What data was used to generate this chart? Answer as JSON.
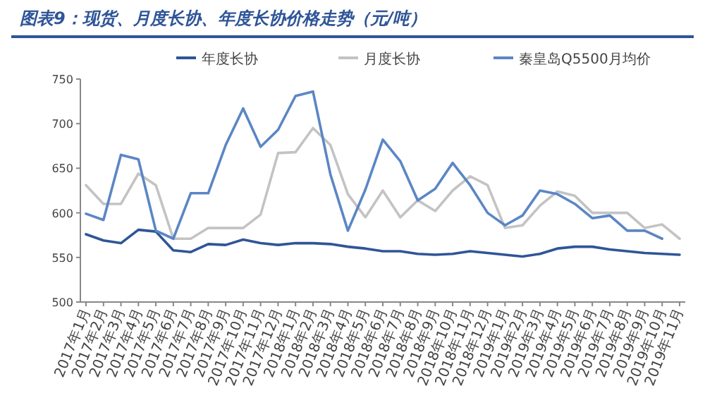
{
  "chart_data": {
    "type": "line",
    "title": "图表9：现货、月度长协、年度长协价格走势（元/吨）",
    "categories": [
      "2017年1月",
      "2017年2月",
      "2017年3月",
      "2017年4月",
      "2017年5月",
      "2017年6月",
      "2017年7月",
      "2017年8月",
      "2017年9月",
      "2017年10月",
      "2017年11月",
      "2017年12月",
      "2018年1月",
      "2018年2月",
      "2018年3月",
      "2018年4月",
      "2018年5月",
      "2018年6月",
      "2018年7月",
      "2018年8月",
      "2018年9月",
      "2018年10月",
      "2018年11月",
      "2018年12月",
      "2019年1月",
      "2019年2月",
      "2019年3月",
      "2019年4月",
      "2019年5月",
      "2019年6月",
      "2019年7月",
      "2019年8月",
      "2019年9月",
      "2019年10月",
      "2019年11月"
    ],
    "series": [
      {
        "name": "年度长协",
        "color": "#2f5597",
        "values": [
          576,
          569,
          566,
          581,
          579,
          558,
          556,
          565,
          564,
          570,
          566,
          564,
          566,
          566,
          565,
          562,
          560,
          557,
          557,
          554,
          553,
          554,
          557,
          555,
          553,
          551,
          554,
          560,
          562,
          562,
          559,
          557,
          555,
          554,
          553
        ]
      },
      {
        "name": "月度长协",
        "color": "#c3c3c3",
        "values": [
          631,
          610,
          610,
          644,
          631,
          571,
          571,
          583,
          583,
          583,
          598,
          667,
          668,
          695,
          676,
          621,
          595,
          625,
          595,
          614,
          602,
          625,
          641,
          631,
          583,
          586,
          608,
          624,
          619,
          600,
          600,
          600,
          583,
          587,
          571
        ]
      },
      {
        "name": "秦皇岛Q5500月均价",
        "color": "#5b86c5",
        "values": [
          599,
          592,
          665,
          660,
          580,
          571,
          622,
          622,
          676,
          717,
          674,
          693,
          731,
          736,
          643,
          580,
          626,
          682,
          658,
          614,
          627,
          656,
          631,
          600,
          586,
          597,
          625,
          621,
          610,
          594,
          597,
          580,
          580,
          571,
          null
        ]
      }
    ],
    "ylim": [
      500,
      750
    ],
    "yticks": [
      500,
      550,
      600,
      650,
      700,
      750
    ],
    "grid": false,
    "legend": "top",
    "marker": "none",
    "line_style": "solid"
  }
}
